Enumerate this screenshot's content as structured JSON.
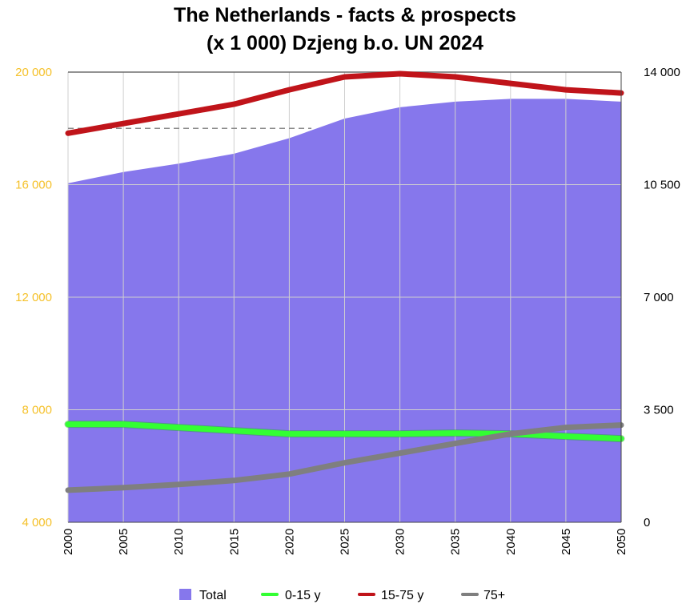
{
  "chart_data": {
    "type": "area",
    "title": "The Netherlands - facts & prospects",
    "subtitle": "(x 1 000) Dzjeng b.o. UN 2024",
    "x": [
      "2000",
      "2005",
      "2010",
      "2015",
      "2020",
      "2025",
      "2030",
      "2035",
      "2040",
      "2045",
      "2050"
    ],
    "y_left": {
      "range": [
        4000,
        20000
      ],
      "ticks": [
        "4 000",
        "8 000",
        "12 000",
        "16 000",
        "20 000"
      ],
      "color": "#f5c12a"
    },
    "y_right": {
      "range": [
        0,
        14000
      ],
      "ticks": [
        "0",
        "3 500",
        "7 000",
        "10 500",
        "14 000"
      ]
    },
    "series": [
      {
        "name": "Total",
        "axis": "left",
        "style": "area",
        "color": "#8677ec",
        "values": [
          16050,
          16450,
          16750,
          17100,
          17650,
          18350,
          18750,
          18950,
          19050,
          19050,
          18950
        ]
      },
      {
        "name": "0-15 y",
        "axis": "right",
        "style": "line",
        "color": "#33ff33",
        "values": [
          3050,
          3050,
          2950,
          2850,
          2750,
          2750,
          2750,
          2775,
          2750,
          2675,
          2600
        ]
      },
      {
        "name": "15-75 y",
        "axis": "right",
        "style": "line",
        "color": "#c0141a",
        "values": [
          12100,
          12400,
          12700,
          13000,
          13450,
          13850,
          13950,
          13850,
          13650,
          13450,
          13350
        ]
      },
      {
        "name": "75+",
        "axis": "right",
        "style": "line",
        "color": "#7f7f7f",
        "values": [
          1000,
          1075,
          1175,
          1300,
          1500,
          1850,
          2150,
          2450,
          2750,
          2950,
          3025
        ]
      }
    ],
    "reference_line": {
      "value": 18000,
      "axis": "left",
      "from": "2000",
      "to": "2022",
      "style": "dashed"
    },
    "grid": true,
    "legend": "bottom"
  }
}
